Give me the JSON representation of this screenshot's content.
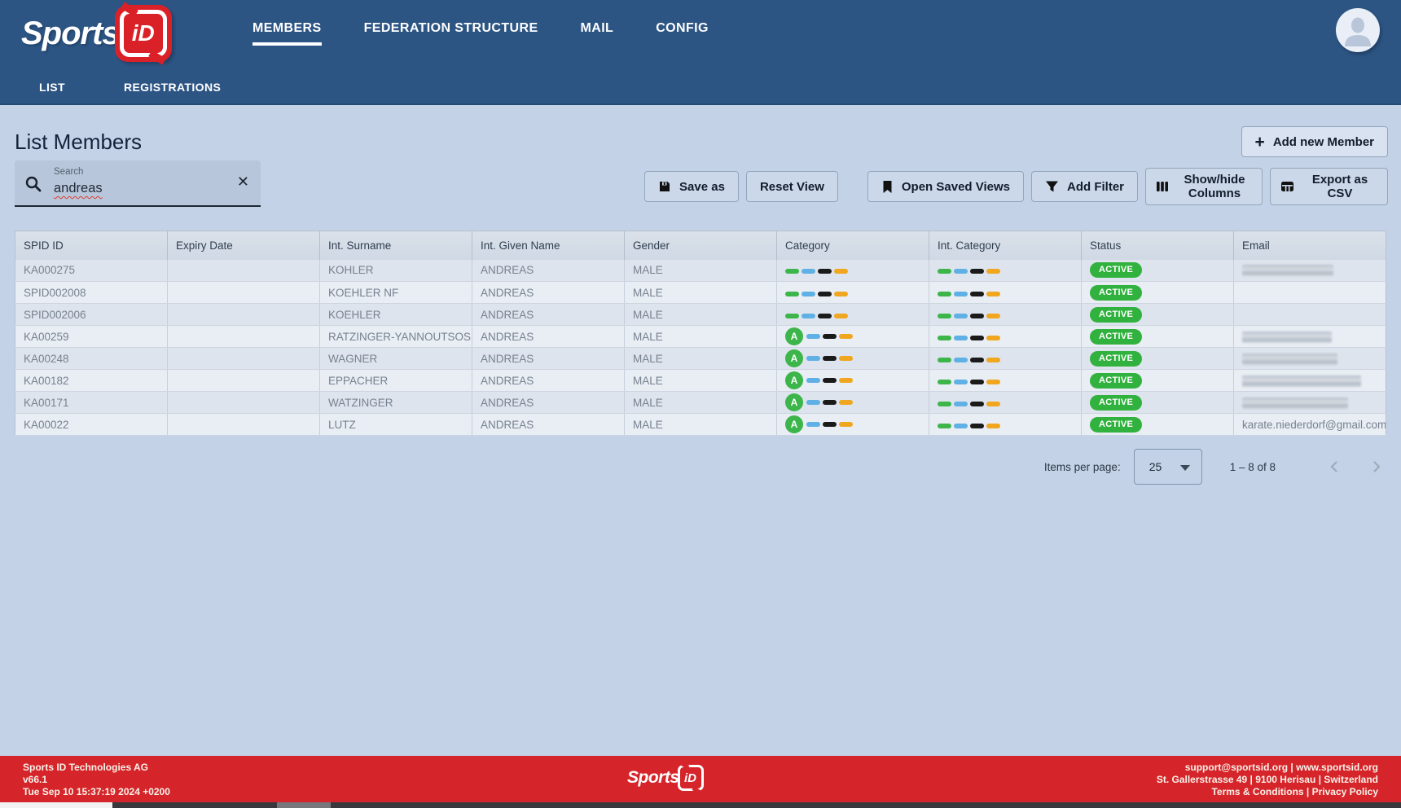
{
  "brand": {
    "text": "Sports",
    "badge": "iD"
  },
  "header": {
    "nav": [
      {
        "label": "MEMBERS",
        "active": true
      },
      {
        "label": "FEDERATION STRUCTURE",
        "active": false
      },
      {
        "label": "MAIL",
        "active": false
      },
      {
        "label": "CONFIG",
        "active": false
      }
    ],
    "subnav": [
      {
        "label": "LIST"
      },
      {
        "label": "REGISTRATIONS"
      }
    ]
  },
  "page": {
    "title": "List Members"
  },
  "search": {
    "label": "Search",
    "value": "andreas"
  },
  "toolbar": {
    "save_as": "Save as",
    "reset_view": "Reset View",
    "open_saved_views": "Open Saved Views",
    "add_filter": "Add Filter",
    "show_hide_columns": "Show/hide Columns",
    "export_csv": "Export as CSV"
  },
  "actions": {
    "add_new_member": "Add new Member"
  },
  "table": {
    "columns": [
      "SPID ID",
      "Expiry Date",
      "Int. Surname",
      "Int. Given Name",
      "Gender",
      "Category",
      "Int. Category",
      "Status",
      "Email"
    ],
    "rows": [
      {
        "spid_id": "KA000275",
        "expiry_date": "",
        "int_surname": "KOHLER",
        "int_given_name": "ANDREAS",
        "gender": "MALE",
        "category_badge": "",
        "status": "ACTIVE",
        "email": "",
        "email_redacted": true,
        "redact_width": 112
      },
      {
        "spid_id": "SPID002008",
        "expiry_date": "",
        "int_surname": "KOEHLER NF",
        "int_given_name": "ANDREAS",
        "gender": "MALE",
        "category_badge": "",
        "status": "ACTIVE",
        "email": "",
        "email_redacted": false,
        "redact_width": 0
      },
      {
        "spid_id": "SPID002006",
        "expiry_date": "",
        "int_surname": "KOEHLER",
        "int_given_name": "ANDREAS",
        "gender": "MALE",
        "category_badge": "",
        "status": "ACTIVE",
        "email": "",
        "email_redacted": false,
        "redact_width": 0
      },
      {
        "spid_id": "KA00259",
        "expiry_date": "",
        "int_surname": "RATZINGER-YANNOUTSOS",
        "int_given_name": "ANDREAS",
        "gender": "MALE",
        "category_badge": "A",
        "status": "ACTIVE",
        "email": "",
        "email_redacted": true,
        "redact_width": 110
      },
      {
        "spid_id": "KA00248",
        "expiry_date": "",
        "int_surname": "WAGNER",
        "int_given_name": "ANDREAS",
        "gender": "MALE",
        "category_badge": "A",
        "status": "ACTIVE",
        "email": "",
        "email_redacted": true,
        "redact_width": 117
      },
      {
        "spid_id": "KA00182",
        "expiry_date": "",
        "int_surname": "EPPACHER",
        "int_given_name": "ANDREAS",
        "gender": "MALE",
        "category_badge": "A",
        "status": "ACTIVE",
        "email": "",
        "email_redacted": true,
        "redact_width": 146
      },
      {
        "spid_id": "KA00171",
        "expiry_date": "",
        "int_surname": "WATZINGER",
        "int_given_name": "ANDREAS",
        "gender": "MALE",
        "category_badge": "A",
        "status": "ACTIVE",
        "email": "",
        "email_redacted": true,
        "redact_width": 130
      },
      {
        "spid_id": "KA00022",
        "expiry_date": "",
        "int_surname": "LUTZ",
        "int_given_name": "ANDREAS",
        "gender": "MALE",
        "category_badge": "A",
        "status": "ACTIVE",
        "email": "karate.niederdorf@gmail.com",
        "email_redacted": false,
        "redact_width": 0
      }
    ]
  },
  "pagination": {
    "items_per_page_label": "Items per page:",
    "items_per_page": "25",
    "range_label": "1 – 8 of 8"
  },
  "footer": {
    "company": "Sports ID Technologies AG",
    "version": "v66.1",
    "build_date": "Tue Sep 10 15:37:19 2024 +0200",
    "contact": "support@sportsid.org | www.sportsid.org",
    "address": "St. Gallerstrasse 49 | 9100 Herisau | Switzerland",
    "legal": "Terms & Conditions | Privacy Policy"
  },
  "colors": {
    "header_blue": "#2d5584",
    "accent_red": "#d6252a",
    "status_active_bg": "#31b23e",
    "category_badge_green": "#3cb54a",
    "category_pills": [
      "#3cb54a",
      "#5fb0e5",
      "#1a1a1a",
      "#f0a71f"
    ]
  }
}
